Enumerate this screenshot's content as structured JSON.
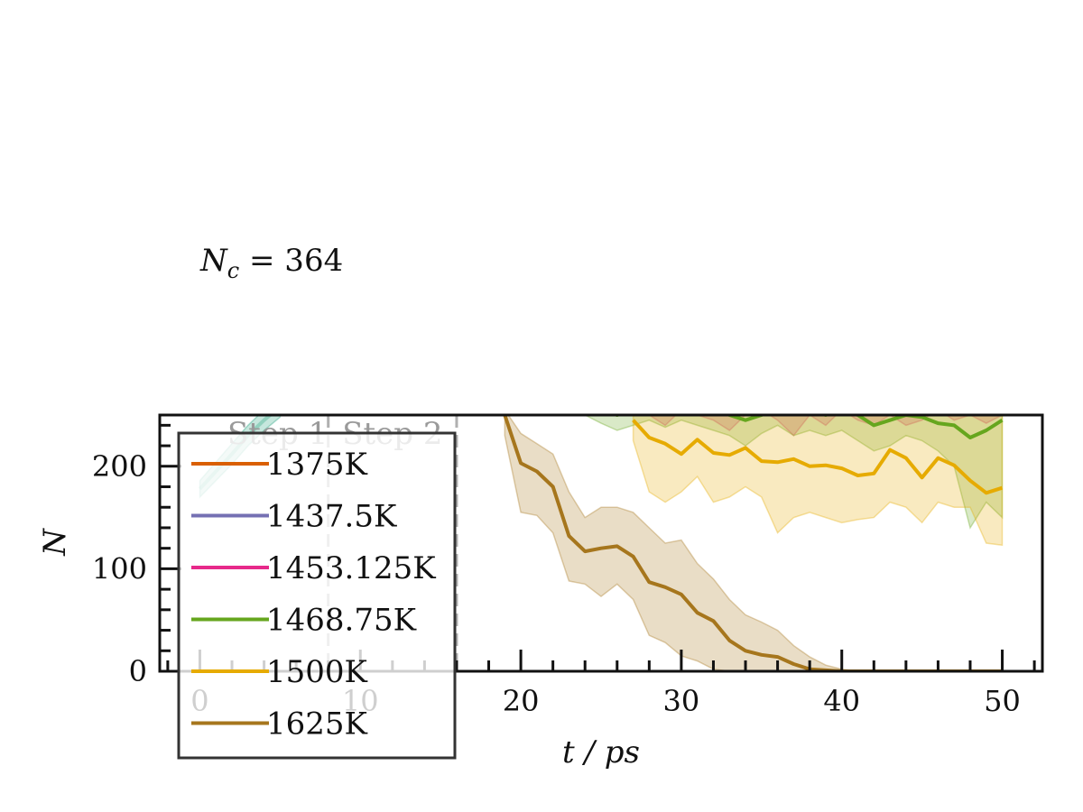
{
  "chart_data": {
    "type": "line",
    "annotation": "N_c = 364",
    "xlabel": "t / ps",
    "ylabel": "N",
    "xlim": [
      -2.5,
      52.5
    ],
    "ylim": [
      0,
      250
    ],
    "xticks": [
      0,
      10,
      20,
      30,
      40,
      50
    ],
    "yticks": [
      0,
      100,
      200
    ],
    "step_labels": [
      "Step 1",
      "Step 2"
    ],
    "step_boundaries": [
      8,
      16
    ],
    "legend_position": "lower-left",
    "grid": false,
    "series": [
      {
        "name": "1375K",
        "color": "#d95f02",
        "x": [],
        "y": [],
        "lower": [],
        "upper": []
      },
      {
        "name": "1437.5K",
        "color": "#7570b3",
        "x": [],
        "y": [],
        "lower": [],
        "upper": []
      },
      {
        "name": "1453.125K",
        "color": "#e7298a",
        "x": [
          28,
          29,
          30,
          31,
          32,
          33,
          34,
          35,
          36,
          37,
          38,
          39,
          40,
          41,
          42,
          43,
          44,
          45,
          46,
          47,
          48,
          49,
          50
        ],
        "y": [
          265,
          262,
          265,
          262,
          266,
          263,
          265,
          262,
          266,
          263,
          265,
          262,
          266,
          263,
          265,
          262,
          266,
          263,
          265,
          262,
          266,
          263,
          265
        ],
        "lower": [
          250,
          240,
          255,
          250,
          245,
          235,
          250,
          255,
          245,
          230,
          250,
          240,
          255,
          245,
          240,
          250,
          240,
          245,
          255,
          245,
          250,
          242,
          250
        ],
        "upper": [
          285,
          285,
          285,
          285,
          285,
          285,
          285,
          285,
          285,
          285,
          285,
          285,
          285,
          285,
          285,
          285,
          285,
          285,
          285,
          285,
          285,
          285,
          285
        ]
      },
      {
        "name": "1468.75K",
        "color": "#66a61e",
        "x": [
          24,
          25,
          26,
          27,
          28,
          29,
          30,
          31,
          32,
          33,
          34,
          35,
          36,
          37,
          38,
          39,
          40,
          41,
          42,
          43,
          44,
          45,
          46,
          47,
          48,
          49,
          50
        ],
        "y": [
          260,
          255,
          250,
          255,
          258,
          252,
          262,
          255,
          258,
          250,
          245,
          250,
          258,
          252,
          255,
          250,
          255,
          250,
          240,
          245,
          250,
          248,
          242,
          240,
          228,
          235,
          245
        ],
        "lower": [
          250,
          242,
          235,
          240,
          245,
          238,
          245,
          240,
          235,
          230,
          220,
          232,
          240,
          230,
          235,
          230,
          235,
          225,
          215,
          220,
          230,
          225,
          215,
          200,
          140,
          165,
          150
        ],
        "upper": [
          270,
          268,
          265,
          270,
          270,
          268,
          272,
          270,
          270,
          268,
          265,
          270,
          272,
          268,
          270,
          268,
          272,
          270,
          262,
          268,
          272,
          270,
          265,
          262,
          255,
          258,
          262
        ]
      },
      {
        "name": "1500K",
        "color": "#e6ab02",
        "x": [
          27,
          28,
          29,
          30,
          31,
          32,
          33,
          34,
          35,
          36,
          37,
          38,
          39,
          40,
          41,
          42,
          43,
          44,
          45,
          46,
          47,
          48,
          49,
          50
        ],
        "y": [
          245,
          228,
          222,
          212,
          226,
          213,
          211,
          218,
          205,
          204,
          207,
          200,
          201,
          198,
          191,
          193,
          216,
          208,
          189,
          208,
          201,
          186,
          174,
          179
        ],
        "lower": [
          225,
          175,
          165,
          175,
          190,
          165,
          170,
          180,
          170,
          135,
          150,
          155,
          150,
          145,
          148,
          150,
          165,
          160,
          145,
          165,
          160,
          160,
          125,
          123
        ],
        "upper": [
          255,
          255,
          255,
          255,
          255,
          255,
          255,
          255,
          255,
          255,
          255,
          255,
          255,
          255,
          255,
          255,
          255,
          255,
          255,
          255,
          255,
          255,
          255,
          255
        ]
      },
      {
        "name": "1625K",
        "color": "#a6761d",
        "x": [
          19,
          20,
          21,
          22,
          23,
          24,
          25,
          26,
          27,
          28,
          29,
          30,
          31,
          32,
          33,
          34,
          35,
          36,
          37,
          38,
          39,
          40,
          41,
          42,
          43,
          44,
          45,
          46,
          47,
          48,
          49,
          50
        ],
        "y": [
          250,
          203,
          195,
          180,
          132,
          117,
          120,
          122,
          112,
          87,
          82,
          75,
          57,
          49,
          30,
          20,
          16,
          14,
          7,
          2,
          1,
          0,
          0,
          0,
          0,
          0,
          0,
          0,
          0,
          0,
          0,
          0
        ],
        "lower": [
          230,
          155,
          152,
          135,
          88,
          85,
          73,
          85,
          70,
          35,
          28,
          15,
          10,
          2,
          0,
          0,
          0,
          0,
          0,
          0,
          0,
          0,
          0,
          0,
          0,
          0,
          0,
          0,
          0,
          0,
          0,
          0
        ],
        "upper": [
          255,
          232,
          222,
          212,
          175,
          150,
          160,
          160,
          155,
          140,
          125,
          128,
          105,
          90,
          70,
          55,
          48,
          40,
          25,
          14,
          6,
          2,
          0,
          0,
          0,
          0,
          0,
          0,
          0,
          0,
          0,
          0
        ]
      },
      {
        "name": "",
        "color": "#1b9e77",
        "x": [
          0,
          1,
          2,
          3,
          4,
          5
        ],
        "y": [
          178,
          195,
          212,
          230,
          245,
          258
        ],
        "lower": [
          170,
          186,
          202,
          220,
          235,
          248
        ],
        "upper": [
          186,
          204,
          222,
          240,
          255,
          268
        ]
      }
    ]
  }
}
